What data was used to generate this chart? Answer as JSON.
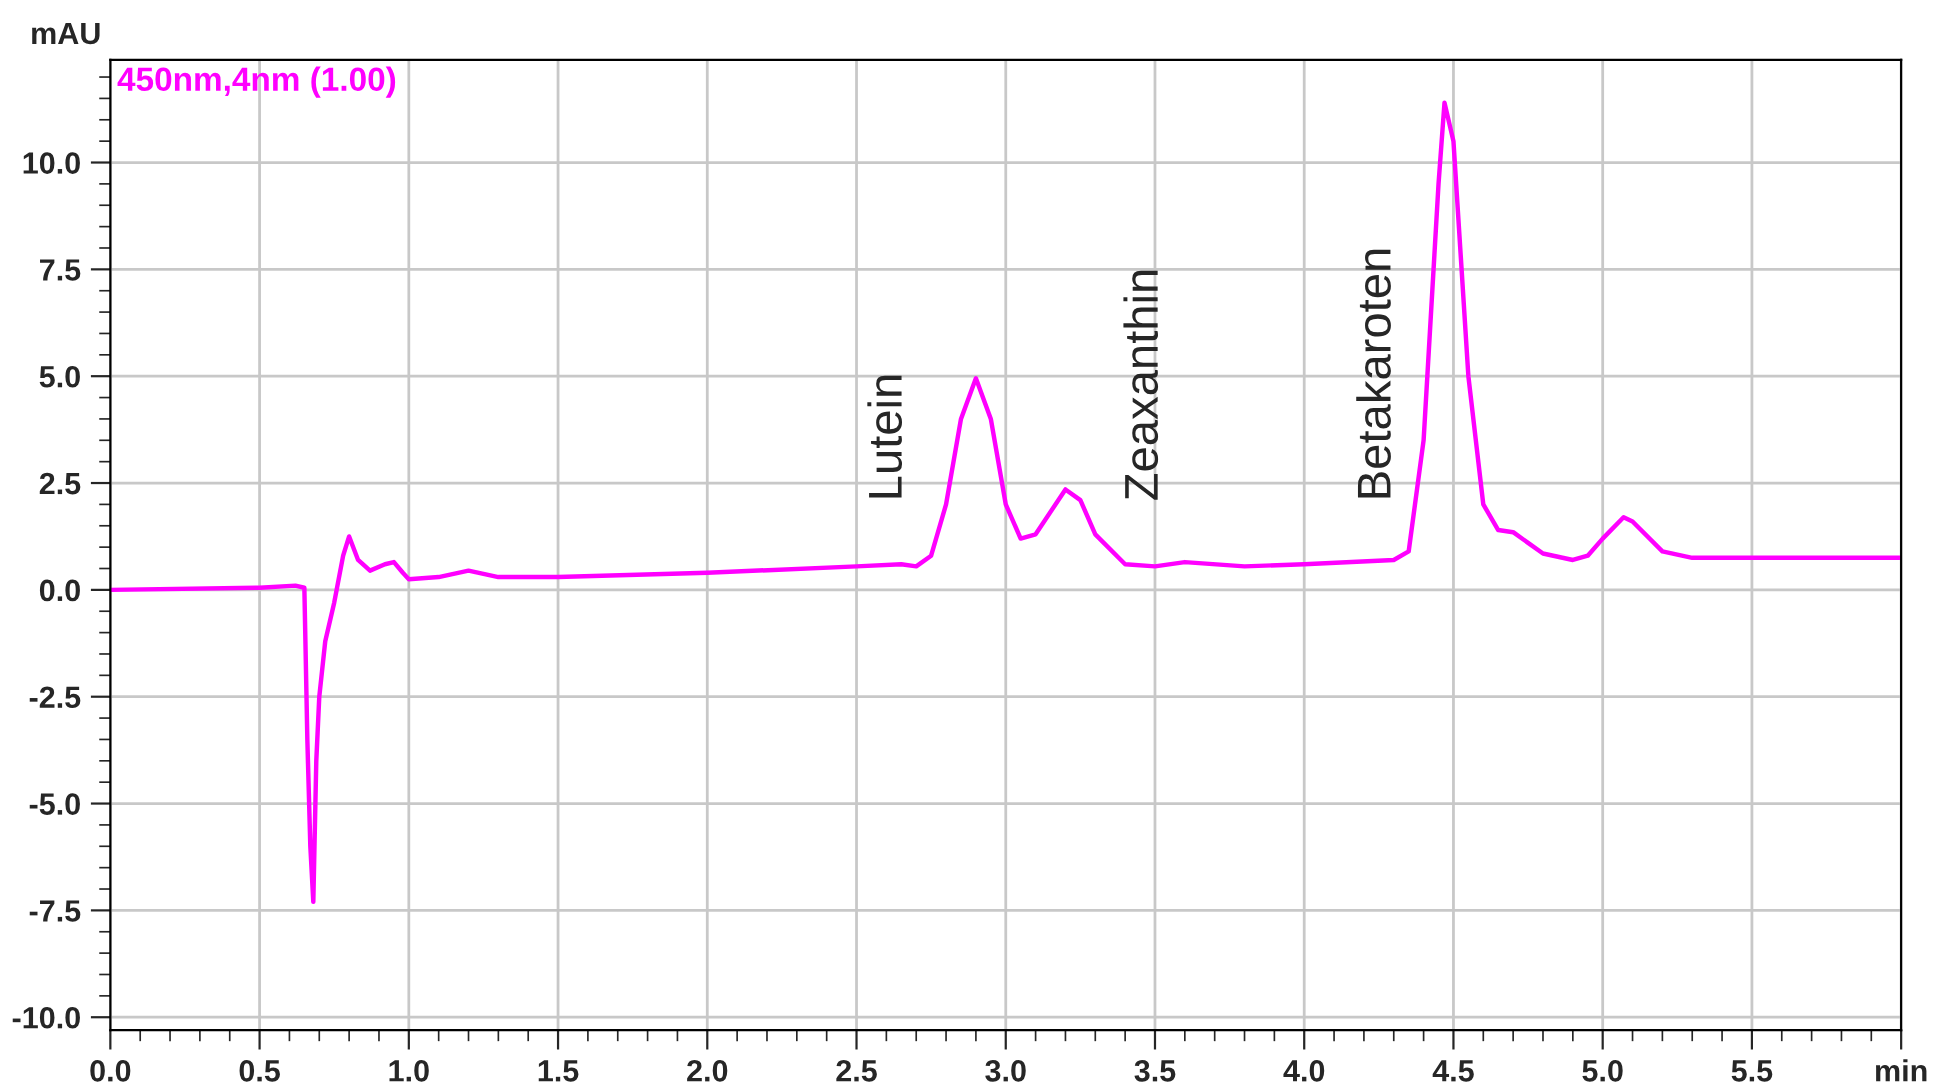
{
  "chart_data": {
    "type": "line",
    "ylabel": "mAU",
    "xlim": [
      0,
      6
    ],
    "ylim": [
      -10.3,
      12.4
    ],
    "xticks": [
      {
        "value": 0,
        "label": "0.0"
      },
      {
        "value": 0.5,
        "label": "0.5"
      },
      {
        "value": 1,
        "label": "1.0"
      },
      {
        "value": 1.5,
        "label": "1.5"
      },
      {
        "value": 2,
        "label": "2.0"
      },
      {
        "value": 2.5,
        "label": "2.5"
      },
      {
        "value": 3,
        "label": "3.0"
      },
      {
        "value": 3.5,
        "label": "3.5"
      },
      {
        "value": 4,
        "label": "4.0"
      },
      {
        "value": 4.5,
        "label": "4.5"
      },
      {
        "value": 5,
        "label": "5.0"
      },
      {
        "value": 5.5,
        "label": "5.5"
      },
      {
        "value": 6,
        "label": "min"
      }
    ],
    "yticks": [
      {
        "value": -10,
        "label": "-10.0"
      },
      {
        "value": -7.5,
        "label": "-7.5"
      },
      {
        "value": -5,
        "label": "-5.0"
      },
      {
        "value": -2.5,
        "label": "-2.5"
      },
      {
        "value": 0,
        "label": "0.0"
      },
      {
        "value": 2.5,
        "label": "2.5"
      },
      {
        "value": 5,
        "label": "5.0"
      },
      {
        "value": 7.5,
        "label": "7.5"
      },
      {
        "value": 10,
        "label": "10.0"
      }
    ],
    "grid": true,
    "legend": "top left",
    "marker": "none",
    "line_style": "solid",
    "series": [
      {
        "name": "450nm,4nm (1.00)",
        "color": "#ff00ff",
        "x": [
          0,
          0.5,
          0.62,
          0.65,
          0.66,
          0.67,
          0.68,
          0.69,
          0.7,
          0.72,
          0.75,
          0.78,
          0.8,
          0.83,
          0.87,
          0.92,
          0.95,
          0.98,
          1.0,
          1.1,
          1.2,
          1.3,
          1.5,
          2.0,
          2.5,
          2.65,
          2.7,
          2.75,
          2.8,
          2.85,
          2.9,
          2.95,
          3.0,
          3.05,
          3.1,
          3.2,
          3.25,
          3.3,
          3.4,
          3.5,
          3.6,
          3.8,
          4.0,
          4.3,
          4.35,
          4.4,
          4.45,
          4.47,
          4.5,
          4.55,
          4.6,
          4.65,
          4.7,
          4.75,
          4.8,
          4.9,
          4.95,
          5.0,
          5.07,
          5.1,
          5.2,
          5.3,
          5.5,
          6.0
        ],
        "values": [
          0,
          0.05,
          0.1,
          0.05,
          -3.5,
          -6.0,
          -7.3,
          -4.0,
          -2.5,
          -1.2,
          -0.3,
          0.8,
          1.25,
          0.7,
          0.45,
          0.6,
          0.65,
          0.4,
          0.25,
          0.3,
          0.45,
          0.3,
          0.3,
          0.4,
          0.55,
          0.6,
          0.55,
          0.8,
          2.0,
          4.0,
          4.95,
          4.0,
          2.0,
          1.2,
          1.3,
          2.35,
          2.1,
          1.3,
          0.6,
          0.55,
          0.65,
          0.55,
          0.6,
          0.7,
          0.9,
          3.5,
          9.5,
          11.4,
          10.5,
          5.0,
          2.0,
          1.4,
          1.35,
          1.1,
          0.85,
          0.7,
          0.8,
          1.2,
          1.7,
          1.6,
          0.9,
          0.75,
          0.75,
          0.75
        ]
      }
    ],
    "annotations": [
      "Lutein",
      "Zeaxanthin",
      "Betakaroten"
    ]
  }
}
